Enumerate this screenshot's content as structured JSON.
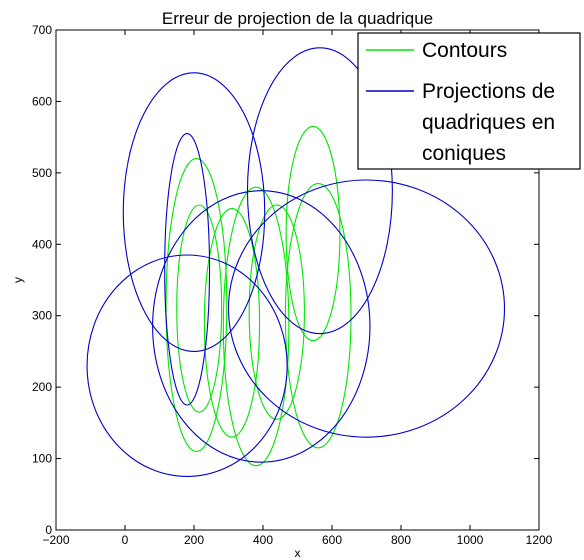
{
  "chart_data": {
    "type": "line",
    "title": "Erreur de projection de la quadrique",
    "xlabel": "x",
    "ylabel": "y",
    "xlim": [
      -200,
      1200
    ],
    "ylim": [
      0,
      700
    ],
    "xticks": [
      -200,
      0,
      200,
      400,
      600,
      800,
      1000,
      1200
    ],
    "yticks": [
      0,
      100,
      200,
      300,
      400,
      500,
      600,
      700
    ],
    "xtick_labels": [
      "−200",
      "0",
      "200",
      "400",
      "600",
      "800",
      "1000",
      "1200"
    ],
    "ytick_labels": [
      "0",
      "100",
      "200",
      "300",
      "400",
      "500",
      "600",
      "700"
    ],
    "grid": false,
    "legend_position": "top-right",
    "legend": [
      {
        "label": "Contours",
        "color": "#00e600"
      },
      {
        "label_lines": [
          "Projections de",
          "quadriques en",
          "coniques"
        ],
        "color": "#0000cc"
      }
    ],
    "series": [
      {
        "role": "contours",
        "color": "#00e600",
        "ellipses": [
          {
            "cx": 207,
            "cy": 315,
            "rx": 88,
            "ry": 205
          },
          {
            "cx": 215,
            "cy": 310,
            "rx": 65,
            "ry": 145
          },
          {
            "cx": 310,
            "cy": 290,
            "rx": 80,
            "ry": 160
          },
          {
            "cx": 380,
            "cy": 285,
            "rx": 95,
            "ry": 195
          },
          {
            "cx": 440,
            "cy": 305,
            "rx": 80,
            "ry": 150
          },
          {
            "cx": 545,
            "cy": 415,
            "rx": 78,
            "ry": 150
          },
          {
            "cx": 560,
            "cy": 300,
            "rx": 95,
            "ry": 185
          }
        ]
      },
      {
        "role": "projections",
        "color": "#0000cc",
        "ellipses": [
          {
            "cx": 200,
            "cy": 445,
            "rx": 205,
            "ry": 195
          },
          {
            "cx": 565,
            "cy": 475,
            "rx": 210,
            "ry": 200
          },
          {
            "cx": 180,
            "cy": 365,
            "rx": 65,
            "ry": 190
          },
          {
            "cx": 395,
            "cy": 285,
            "rx": 315,
            "ry": 190
          },
          {
            "cx": 180,
            "cy": 230,
            "rx": 290,
            "ry": 155
          },
          {
            "cx": 700,
            "cy": 310,
            "rx": 400,
            "ry": 180
          }
        ]
      }
    ]
  }
}
